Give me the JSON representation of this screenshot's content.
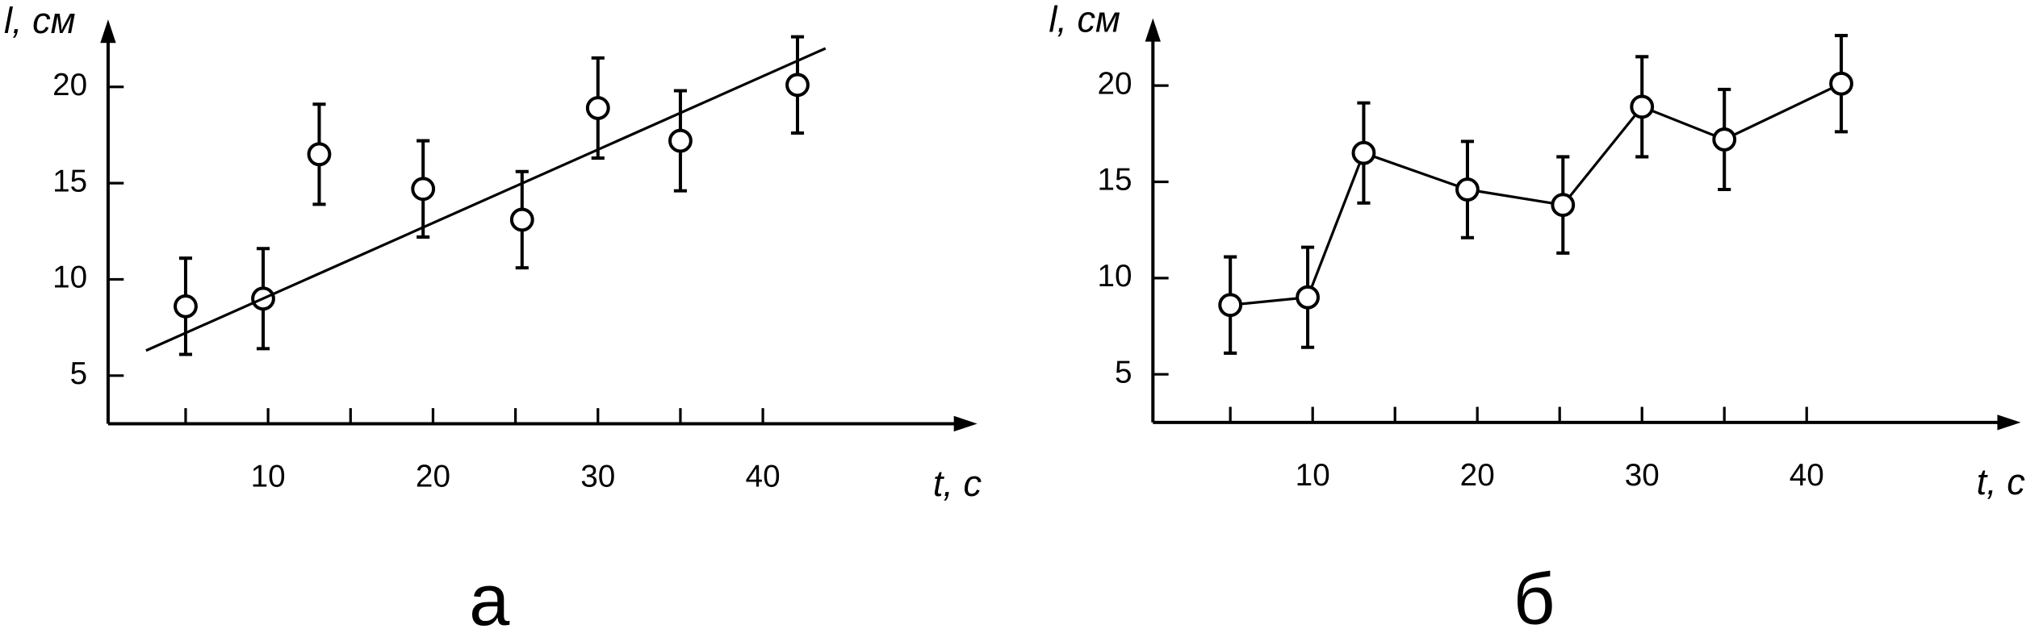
{
  "chart_data": [
    {
      "type": "scatter",
      "panel_label": "а",
      "x_label": "t, с",
      "y_label": "l, см",
      "x": [
        5.0,
        9.7,
        13.1,
        19.4,
        25.4,
        30.0,
        35.0,
        42.1
      ],
      "values": [
        8.6,
        9.0,
        16.5,
        14.7,
        13.1,
        18.9,
        17.2,
        20.1
      ],
      "errors": [
        2.5,
        2.6,
        2.6,
        2.5,
        2.5,
        2.6,
        2.6,
        2.5
      ],
      "fit": {
        "x": [
          2.6,
          43.8
        ],
        "values": [
          6.3,
          22.0
        ]
      },
      "color": "#000000",
      "xlim": [
        0.3,
        53
      ],
      "ylim": [
        2.5,
        23.5
      ],
      "xticks": [
        10,
        20,
        30,
        40
      ],
      "x_minor_ticks": [
        5,
        15,
        25,
        35
      ],
      "yticks": [
        5,
        10,
        15,
        20
      ]
    },
    {
      "type": "line",
      "panel_label": "б",
      "x_label": "t, с",
      "y_label": "l, см",
      "x": [
        5.0,
        9.7,
        13.1,
        19.4,
        25.2,
        30.0,
        35.0,
        42.1
      ],
      "values": [
        8.6,
        9.0,
        16.5,
        14.6,
        13.8,
        18.9,
        17.2,
        20.1
      ],
      "errors": [
        2.5,
        2.6,
        2.6,
        2.5,
        2.5,
        2.6,
        2.6,
        2.5
      ],
      "color": "#000000",
      "xlim": [
        0.3,
        53
      ],
      "ylim": [
        2.5,
        23.5
      ],
      "xticks": [
        10,
        20,
        30,
        40
      ],
      "x_minor_ticks": [
        5,
        15,
        25,
        35
      ],
      "yticks": [
        5,
        10,
        15,
        20
      ]
    }
  ]
}
